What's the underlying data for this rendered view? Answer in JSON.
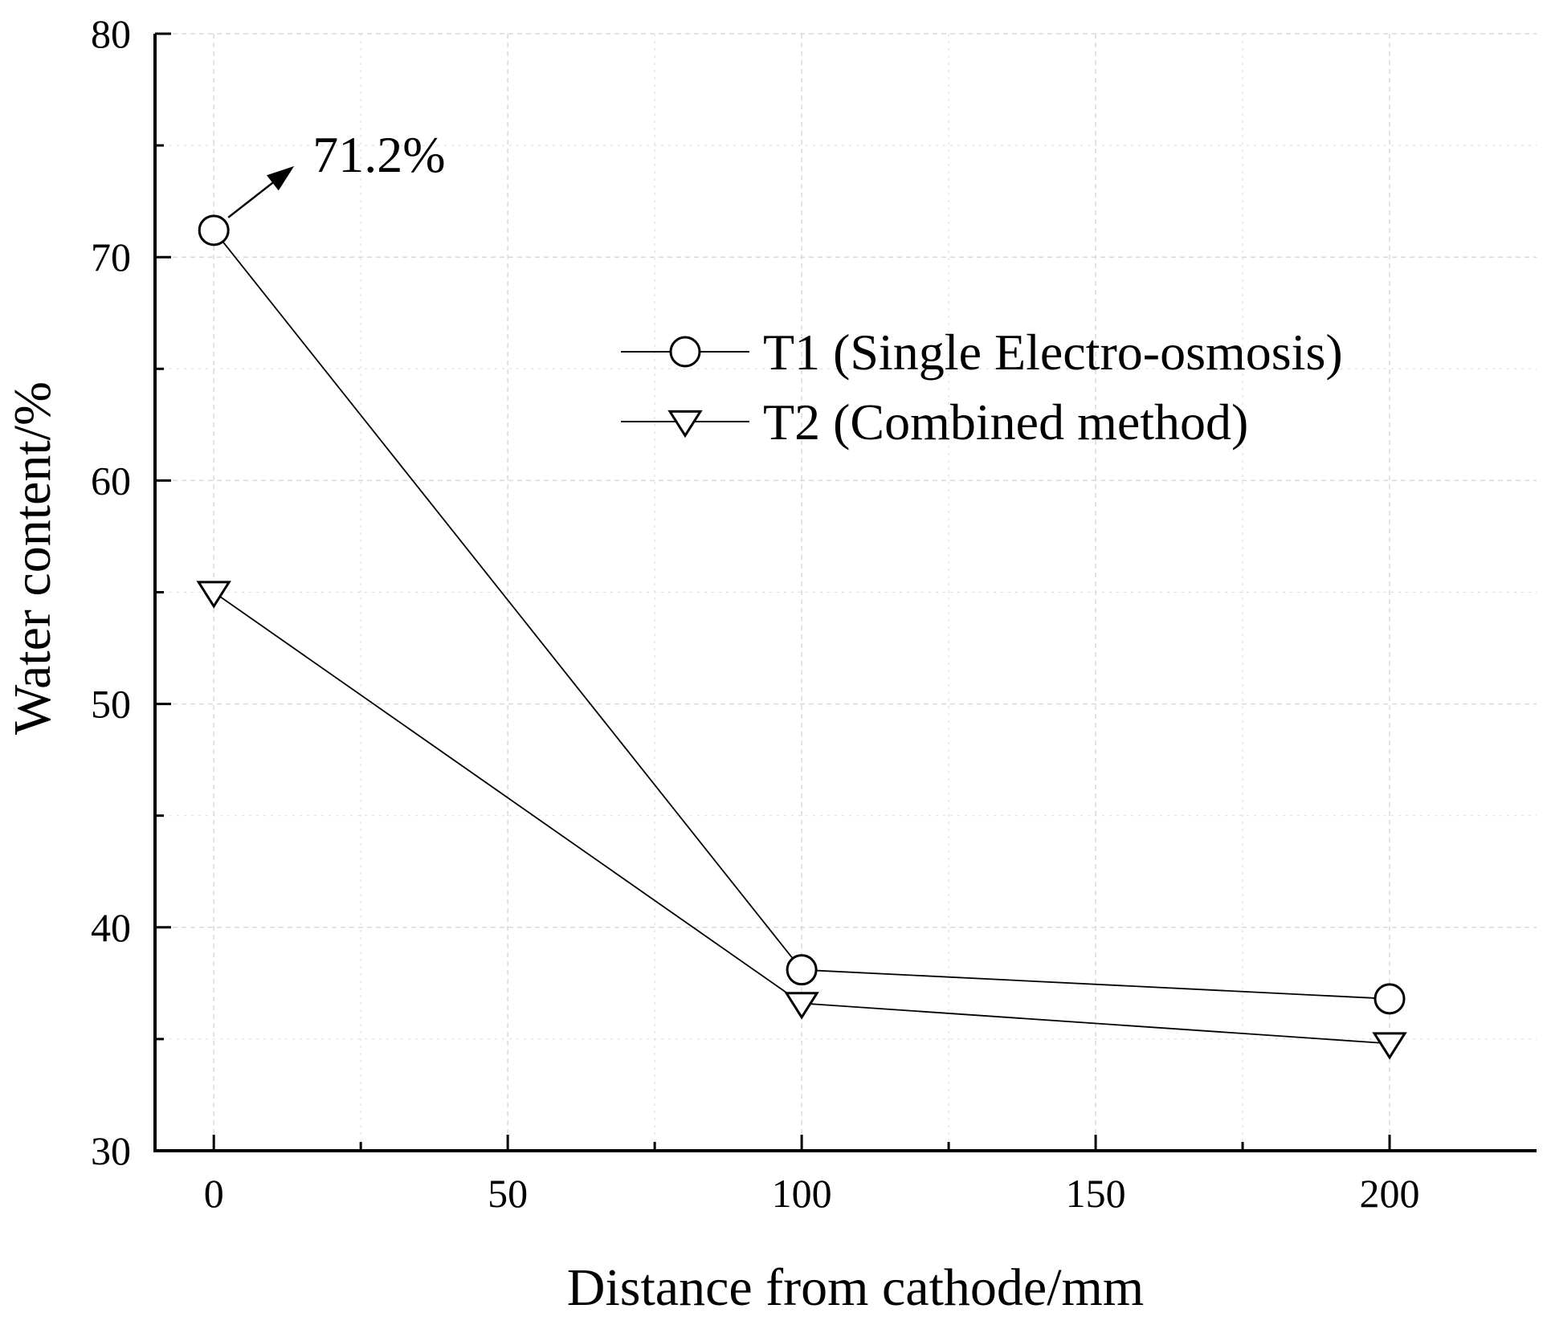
{
  "chart_data": {
    "type": "line",
    "title": "",
    "xlabel": "Distance from cathode/mm",
    "ylabel": "Water content/%",
    "xlim": [
      -10,
      225
    ],
    "ylim": [
      30,
      80
    ],
    "x_ticks": [
      "0",
      "50",
      "100",
      "150",
      "200"
    ],
    "y_ticks": [
      "30",
      "40",
      "50",
      "60",
      "70",
      "80"
    ],
    "x_tick_values": [
      0,
      50,
      100,
      150,
      200
    ],
    "y_tick_values": [
      30,
      40,
      50,
      60,
      70,
      80
    ],
    "x_minor_tick_values": [
      25,
      75,
      125,
      175
    ],
    "y_minor_tick_values": [
      35,
      45,
      55,
      65,
      75
    ],
    "grid": true,
    "legend_position": "upper-right",
    "x": [
      0,
      100,
      200
    ],
    "series": [
      {
        "name": "T1 (Single Electro-osmosis)",
        "marker": "circle",
        "values": [
          71.2,
          38.1,
          36.8
        ]
      },
      {
        "name": "T2 (Combined method)",
        "marker": "triangle-down",
        "values": [
          55.0,
          36.6,
          34.8
        ]
      }
    ],
    "annotations": [
      {
        "text": "71.2%",
        "x": 0,
        "y": 71.2,
        "series": "T1 (Single Electro-osmosis)"
      }
    ],
    "colors": {
      "line": "#000000",
      "grid": "#d9d9d9",
      "marker_fill": "#ffffff"
    }
  }
}
